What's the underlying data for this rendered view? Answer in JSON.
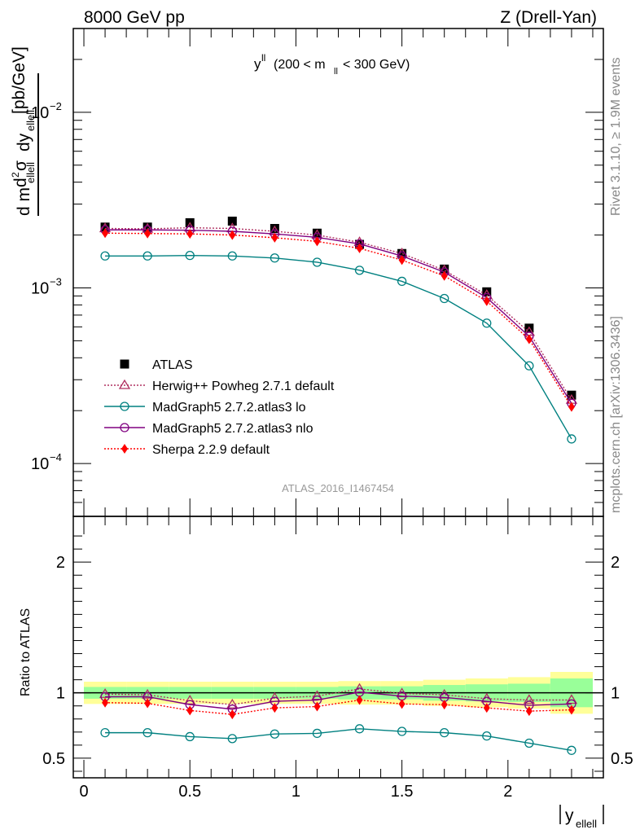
{
  "header": {
    "left": "8000 GeV pp",
    "right": "Z (Drell-Yan)"
  },
  "side_labels": {
    "rivet": "Rivet 3.1.10, ≥ 1.9M events",
    "mcplots": "mcplots.cern.ch [arXiv:1306.3436]"
  },
  "chart_data": [
    {
      "type": "line",
      "title": "y^ll (200 < m_ll < 300 GeV)",
      "ylabel": "d²σ / d m_ellell dy_ellell [pb/GeV]",
      "xlabel": "",
      "yscale": "log",
      "ylim": [
        5e-05,
        0.03
      ],
      "xlim": [
        -0.05,
        2.45
      ],
      "ytick_labels": [
        "10^-4",
        "10^-3",
        "10^-2"
      ],
      "watermark": "ATLAS_2016_I1467454",
      "legend_position": "lower-left",
      "x": [
        0.1,
        0.3,
        0.5,
        0.7,
        0.9,
        1.1,
        1.3,
        1.5,
        1.7,
        1.9,
        2.1,
        2.3
      ],
      "series": [
        {
          "name": "ATLAS",
          "marker": "square",
          "color": "#000000",
          "values": [
            0.00222,
            0.00222,
            0.00235,
            0.0024,
            0.00218,
            0.00205,
            0.00177,
            0.00157,
            0.00128,
            0.00095,
            0.00059,
            0.000245
          ]
        },
        {
          "name": "Herwig++ Powheg 2.7.1 default",
          "marker": "triangle-open",
          "line": "dotted",
          "color": "#b03060",
          "values": [
            0.00218,
            0.00217,
            0.0022,
            0.00218,
            0.0021,
            0.002,
            0.00182,
            0.00157,
            0.00126,
            0.00091,
            0.00056,
            0.00023
          ]
        },
        {
          "name": "MadGraph5 2.7.2.atlas3 lo",
          "marker": "circle-open",
          "line": "solid",
          "color": "#008080",
          "values": [
            0.00152,
            0.00152,
            0.00153,
            0.00152,
            0.00148,
            0.0014,
            0.00126,
            0.00109,
            0.00087,
            0.00063,
            0.00036,
            0.000138
          ]
        },
        {
          "name": "MadGraph5 2.7.2.atlas3 nlo",
          "marker": "circle-open",
          "line": "solid",
          "color": "#800080",
          "values": [
            0.00214,
            0.00214,
            0.00213,
            0.0021,
            0.00203,
            0.00194,
            0.00178,
            0.00152,
            0.00123,
            0.00088,
            0.00053,
            0.00022
          ]
        },
        {
          "name": "Sherpa 2.2.9 default",
          "marker": "diamond",
          "line": "dotted",
          "color": "#ff0000",
          "values": [
            0.00205,
            0.00204,
            0.00203,
            0.002,
            0.00193,
            0.00184,
            0.00168,
            0.00144,
            0.00117,
            0.00084,
            0.00051,
            0.00021
          ]
        }
      ]
    },
    {
      "type": "line",
      "ylabel": "Ratio to ATLAS",
      "xlabel": "|y_ellell|",
      "ylim": [
        0.35,
        2.35
      ],
      "xlim": [
        -0.05,
        2.45
      ],
      "ytick_labels": [
        "0.5",
        "1",
        "2"
      ],
      "xtick_labels": [
        "0",
        "0.5",
        "1",
        "1.5",
        "2"
      ],
      "bins": [
        [
          0.0,
          0.2
        ],
        [
          0.2,
          0.4
        ],
        [
          0.4,
          0.6
        ],
        [
          0.6,
          0.8
        ],
        [
          0.8,
          1.0
        ],
        [
          1.0,
          1.2
        ],
        [
          1.2,
          1.4
        ],
        [
          1.4,
          1.6
        ],
        [
          1.6,
          1.8
        ],
        [
          1.8,
          2.0
        ],
        [
          2.0,
          2.2
        ],
        [
          2.2,
          2.4
        ]
      ],
      "band_inner": [
        0.045,
        0.045,
        0.045,
        0.045,
        0.045,
        0.045,
        0.05,
        0.05,
        0.06,
        0.065,
        0.07,
        0.11
      ],
      "band_outer": [
        0.085,
        0.085,
        0.085,
        0.085,
        0.085,
        0.085,
        0.09,
        0.09,
        0.1,
        0.11,
        0.12,
        0.16
      ],
      "x": [
        0.1,
        0.3,
        0.5,
        0.7,
        0.9,
        1.1,
        1.3,
        1.5,
        1.7,
        1.9,
        2.1,
        2.3
      ],
      "series": [
        {
          "name": "Herwig++ Powheg 2.7.1 default",
          "marker": "triangle-open",
          "line": "dotted",
          "color": "#b03060",
          "values": [
            0.99,
            0.985,
            0.94,
            0.91,
            0.96,
            0.975,
            1.03,
            0.995,
            0.985,
            0.955,
            0.945,
            0.945
          ]
        },
        {
          "name": "MadGraph5 2.7.2.atlas3 lo",
          "marker": "circle-open",
          "line": "solid",
          "color": "#008080",
          "values": [
            0.695,
            0.695,
            0.665,
            0.65,
            0.685,
            0.69,
            0.725,
            0.705,
            0.695,
            0.67,
            0.615,
            0.56
          ]
        },
        {
          "name": "MadGraph5 2.7.2.atlas3 nlo",
          "marker": "circle-open",
          "line": "solid",
          "color": "#800080",
          "values": [
            0.97,
            0.97,
            0.91,
            0.875,
            0.935,
            0.945,
            1.005,
            0.975,
            0.965,
            0.935,
            0.905,
            0.915
          ]
        },
        {
          "name": "Sherpa 2.2.9 default",
          "marker": "diamond",
          "line": "dotted",
          "color": "#ff0000",
          "values": [
            0.925,
            0.92,
            0.865,
            0.835,
            0.885,
            0.895,
            0.945,
            0.915,
            0.91,
            0.885,
            0.86,
            0.87
          ]
        }
      ]
    }
  ]
}
